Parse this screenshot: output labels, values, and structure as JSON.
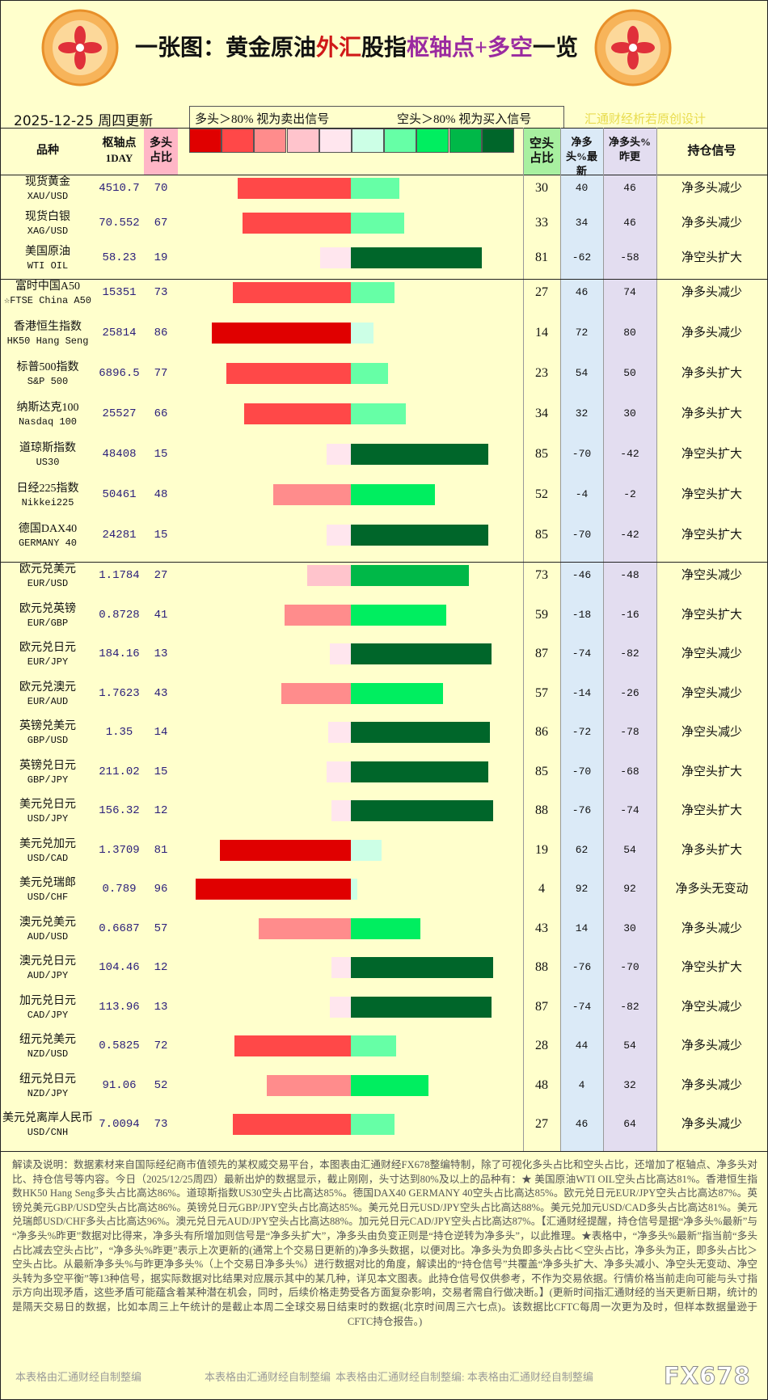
{
  "header": {
    "title_parts": [
      {
        "text": "一张图：黄金原油",
        "color": "#111111"
      },
      {
        "text": "外汇",
        "color": "#d01818"
      },
      {
        "text": "股指",
        "color": "#111111"
      },
      {
        "text": "枢轴点+多空",
        "color": "#9a2aa0"
      },
      {
        "text": "一览",
        "color": "#111111"
      }
    ],
    "date": "2025-12-25 周四更新",
    "legend_left": "多头＞80% 视为卖出信号",
    "legend_right": "空头＞80% 视为买入信号",
    "credit": "汇通财经析若原创设计",
    "legend_colors": [
      "#e00000",
      "#ff4848",
      "#ff8c8c",
      "#ffc4cc",
      "#ffe6ee",
      "#ccffe6",
      "#66ffa6",
      "#00ee60",
      "#00b848",
      "#00662a"
    ]
  },
  "table": {
    "columns": {
      "name": "品种",
      "pivot": "枢轴点",
      "pivot_period": "1DAY",
      "long": "多头占比",
      "short": "空头占比",
      "net_new": "净多头%最新",
      "net_prev": "净多头%昨更",
      "signal": "持仓信号"
    },
    "groups": [
      {
        "rows": [
          {
            "name": "现货黄金",
            "code": "XAU/USD",
            "pivot": 4510.7,
            "long": 70,
            "short": 30,
            "net_new": 40,
            "net_prev": 46,
            "signal": "净多头减少"
          },
          {
            "name": "现货白银",
            "code": "XAG/USD",
            "pivot": 70.552,
            "long": 67,
            "short": 33,
            "net_new": 34,
            "net_prev": 46,
            "signal": "净多头减少"
          },
          {
            "name": "美国原油",
            "code": "WTI OIL",
            "pivot": 58.23,
            "long": 19,
            "short": 81,
            "net_new": -62,
            "net_prev": -58,
            "signal": "净空头扩大"
          }
        ]
      },
      {
        "rows": [
          {
            "name": "富时中国A50",
            "code": "☆FTSE China A50",
            "pivot": 15351,
            "long": 73,
            "short": 27,
            "net_new": 46,
            "net_prev": 74,
            "signal": "净多头减少"
          },
          {
            "name": "香港恒生指数",
            "code": "HK50 Hang Seng",
            "pivot": 25814,
            "long": 86,
            "short": 14,
            "net_new": 72,
            "net_prev": 80,
            "signal": "净多头减少"
          },
          {
            "name": "标普500指数",
            "code": "S&P 500",
            "pivot": 6896.5,
            "long": 77,
            "short": 23,
            "net_new": 54,
            "net_prev": 50,
            "signal": "净多头扩大"
          },
          {
            "name": "纳斯达克100",
            "code": "Nasdaq 100",
            "pivot": 25527,
            "long": 66,
            "short": 34,
            "net_new": 32,
            "net_prev": 30,
            "signal": "净多头扩大"
          },
          {
            "name": "道琼斯指数",
            "code": "US30",
            "pivot": 48408,
            "long": 15,
            "short": 85,
            "net_new": -70,
            "net_prev": -42,
            "signal": "净空头扩大"
          },
          {
            "name": "日经225指数",
            "code": "Nikkei225",
            "pivot": 50461,
            "long": 48,
            "short": 52,
            "net_new": -4,
            "net_prev": -2,
            "signal": "净空头扩大"
          },
          {
            "name": "德国DAX40",
            "code": "GERMANY 40",
            "pivot": 24281,
            "long": 15,
            "short": 85,
            "net_new": -70,
            "net_prev": -42,
            "signal": "净空头扩大"
          }
        ]
      },
      {
        "rows": [
          {
            "name": "欧元兑美元",
            "code": "EUR/USD",
            "pivot": 1.1784,
            "long": 27,
            "short": 73,
            "net_new": -46,
            "net_prev": -48,
            "signal": "净空头减少"
          },
          {
            "name": "欧元兑英镑",
            "code": "EUR/GBP",
            "pivot": 0.8728,
            "long": 41,
            "short": 59,
            "net_new": -18,
            "net_prev": -16,
            "signal": "净空头扩大"
          },
          {
            "name": "欧元兑日元",
            "code": "EUR/JPY",
            "pivot": 184.16,
            "long": 13,
            "short": 87,
            "net_new": -74,
            "net_prev": -82,
            "signal": "净空头减少"
          },
          {
            "name": "欧元兑澳元",
            "code": "EUR/AUD",
            "pivot": 1.7623,
            "long": 43,
            "short": 57,
            "net_new": -14,
            "net_prev": -26,
            "signal": "净空头减少"
          },
          {
            "name": "英镑兑美元",
            "code": "GBP/USD",
            "pivot": 1.35,
            "long": 14,
            "short": 86,
            "net_new": -72,
            "net_prev": -78,
            "signal": "净空头减少"
          },
          {
            "name": "英镑兑日元",
            "code": "GBP/JPY",
            "pivot": 211.02,
            "long": 15,
            "short": 85,
            "net_new": -70,
            "net_prev": -68,
            "signal": "净空头扩大"
          },
          {
            "name": "美元兑日元",
            "code": "USD/JPY",
            "pivot": 156.32,
            "long": 12,
            "short": 88,
            "net_new": -76,
            "net_prev": -74,
            "signal": "净空头扩大"
          },
          {
            "name": "美元兑加元",
            "code": "USD/CAD",
            "pivot": 1.3709,
            "long": 81,
            "short": 19,
            "net_new": 62,
            "net_prev": 54,
            "signal": "净多头扩大"
          },
          {
            "name": "美元兑瑞郎",
            "code": "USD/CHF",
            "pivot": 0.789,
            "long": 96,
            "short": 4,
            "net_new": 92,
            "net_prev": 92,
            "signal": "净多头无变动"
          },
          {
            "name": "澳元兑美元",
            "code": "AUD/USD",
            "pivot": 0.6687,
            "long": 57,
            "short": 43,
            "net_new": 14,
            "net_prev": 30,
            "signal": "净多头减少"
          },
          {
            "name": "澳元兑日元",
            "code": "AUD/JPY",
            "pivot": 104.46,
            "long": 12,
            "short": 88,
            "net_new": -76,
            "net_prev": -70,
            "signal": "净空头扩大"
          },
          {
            "name": "加元兑日元",
            "code": "CAD/JPY",
            "pivot": 113.96,
            "long": 13,
            "short": 87,
            "net_new": -74,
            "net_prev": -82,
            "signal": "净空头减少"
          },
          {
            "name": "纽元兑美元",
            "code": "NZD/USD",
            "pivot": 0.5825,
            "long": 72,
            "short": 28,
            "net_new": 44,
            "net_prev": 54,
            "signal": "净多头减少"
          },
          {
            "name": "纽元兑日元",
            "code": "NZD/JPY",
            "pivot": 91.06,
            "long": 52,
            "short": 48,
            "net_new": 4,
            "net_prev": 32,
            "signal": "净多头减少"
          },
          {
            "name": "美元兑离岸人民币",
            "code": "USD/CNH",
            "pivot": 7.0094,
            "long": 73,
            "short": 27,
            "net_new": 46,
            "net_prev": 64,
            "signal": "净多头减少"
          }
        ]
      }
    ]
  },
  "footer": {
    "text": "解读及说明：数据素材来自国际经纪商市值领先的某权威交易平台，本图表由汇通财经FX678整编特制，除了可视化多头占比和空头占比，还增加了枢轴点、净多头对比、持仓信号等内容。今日（2025/12/25周四）最新出炉的数据显示，截止刚刚，头寸达到80%及以上的品种有：★ 美国原油WTI OIL空头占比高达81%。香港恒生指数HK50 Hang Seng多头占比高达86%。道琼斯指数US30空头占比高达85%。德国DAX40 GERMANY 40空头占比高达85%。欧元兑日元EUR/JPY空头占比高达87%。英镑兑美元GBP/USD空头占比高达86%。英镑兑日元GBP/JPY空头占比高达85%。美元兑日元USD/JPY空头占比高达88%。美元兑加元USD/CAD多头占比高达81%。美元兑瑞郎USD/CHF多头占比高达96%。澳元兑日元AUD/JPY空头占比高达88%。加元兑日元CAD/JPY空头占比高达87%。【汇通财经提醒，持仓信号是据“净多头%最新”与“净多头%昨更”数据对比得来，净多头有所增加则信号是“净多头扩大”，净多头由负变正则是“持仓逆转为净多头”，以此推理。★表格中，“净多头%最新”指当前“多头占比减去空头占比”，“净多头%昨更”表示上次更新的(通常上个交易日更新的)净多头数据，以便对比。净多头为负即多头占比＜空头占比，净多头为正，即多头占比＞空头占比。从最新净多头%与昨更净多头%（上个交易日净多头%）进行数据对比的角度，解读出的“持仓信号”共覆盖“净多头扩大、净多头减小、净空头无变动、净空头转为多空平衡”等13种信号，据实际数据对比结果对应展示其中的某几种，详见本文图表。此持仓信号仅供参考，不作为交易依据。行情价格当前走向可能与头寸指示方向出现矛盾，这些矛盾可能蕴含着某种潜在机会，同时，后续价格走势受各方面复杂影响，交易者需自行做决断。】(更新时间指汇通财经的当天更新日期，统计的是隔天交易日的数据，比如本周三上午统计的是截止本周二全球交易日结束时的数据(北京时间周三六七点)。该数据比CFTC每周一次更为及时，但样本数据量逊于CFTC持仓报告。)",
    "marks": [
      "本表格由汇通财经自制整编",
      "本表格由汇通财经自制整编",
      "本表格由汇通财经自制整编: 本表格由汇通财经自制整编"
    ],
    "logo_text": "FX678"
  }
}
